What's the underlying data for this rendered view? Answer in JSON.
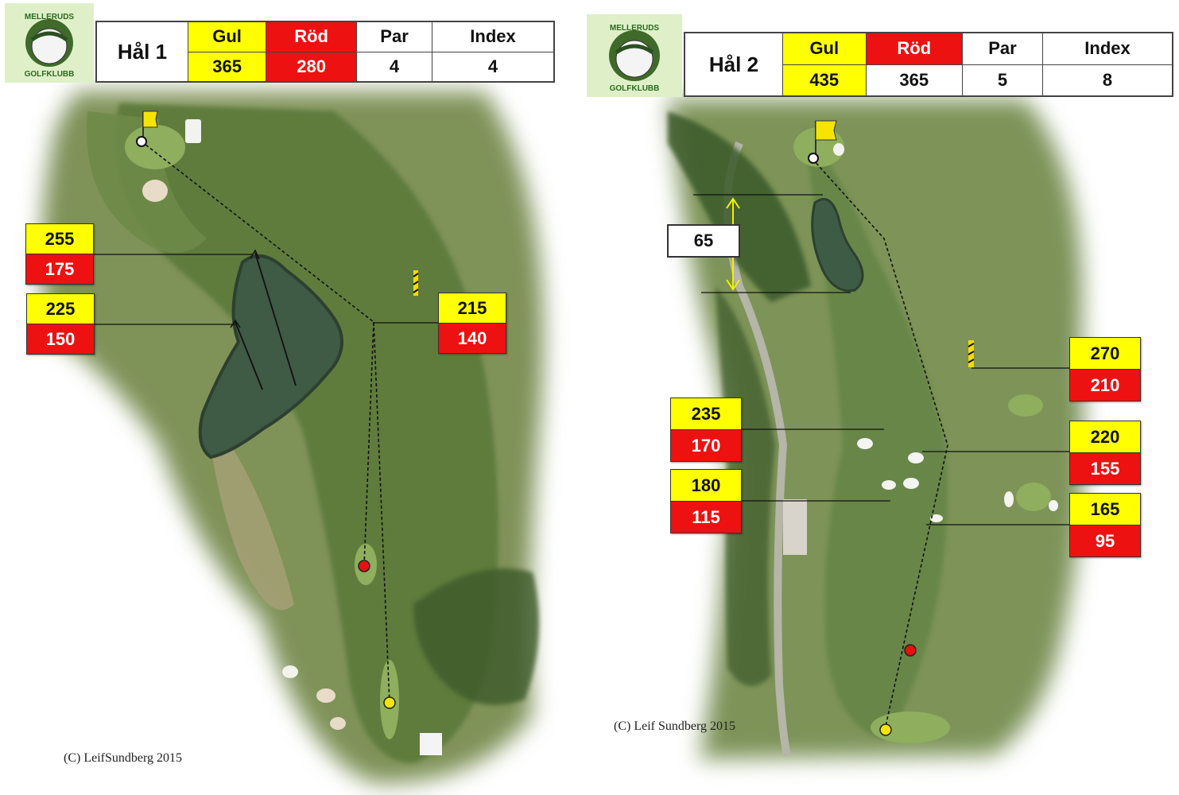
{
  "club_logo": {
    "text_top": "MELLERUDS",
    "text_bottom": "GOLFKLUBB"
  },
  "holes": [
    {
      "hole_label": "Hål 1",
      "headers": {
        "gul": "Gul",
        "rod": "Röd",
        "par": "Par",
        "index": "Index"
      },
      "values": {
        "gul": "365",
        "rod": "280",
        "par": "4",
        "index": "4"
      },
      "distance_markers": [
        {
          "gul": "255",
          "rod": "175"
        },
        {
          "gul": "225",
          "rod": "150"
        },
        {
          "gul": "215",
          "rod": "140"
        }
      ],
      "copyright": "(C) LeifSundberg 2015"
    },
    {
      "hole_label": "Hål 2",
      "headers": {
        "gul": "Gul",
        "rod": "Röd",
        "par": "Par",
        "index": "Index"
      },
      "values": {
        "gul": "435",
        "rod": "365",
        "par": "5",
        "index": "8"
      },
      "measure_label": "65",
      "distance_markers": [
        {
          "gul": "270",
          "rod": "210"
        },
        {
          "gul": "235",
          "rod": "170"
        },
        {
          "gul": "220",
          "rod": "155"
        },
        {
          "gul": "180",
          "rod": "115"
        },
        {
          "gul": "165",
          "rod": "95"
        }
      ],
      "copyright": "(C) Leif Sundberg 2015"
    }
  ],
  "colors": {
    "yellow_tee": "#ffff00",
    "red_tee": "#ee1111",
    "fairway": "#5d7a3e",
    "rough": "#8a9a5e",
    "water": "#3f5a45"
  }
}
